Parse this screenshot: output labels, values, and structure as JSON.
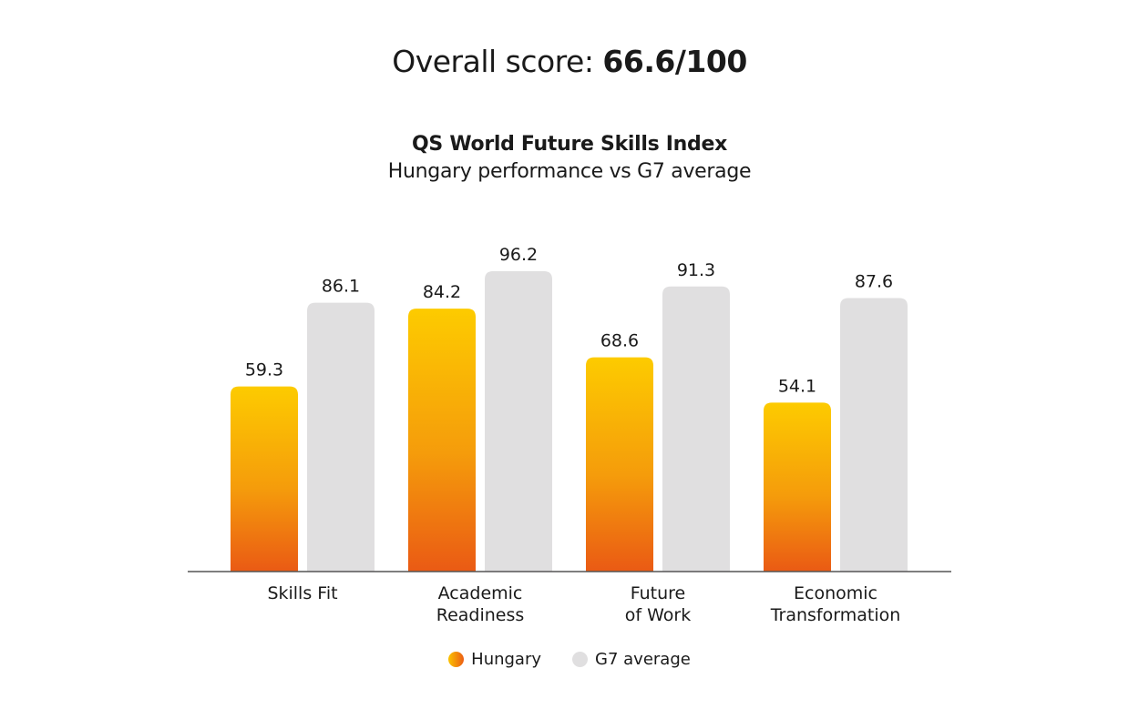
{
  "header": {
    "overall_prefix": "Overall score: ",
    "overall_value": "66.6/100"
  },
  "chart_data": {
    "type": "bar",
    "title": "QS World Future Skills Index",
    "subtitle": "Hungary performance vs G7 average",
    "categories": [
      [
        "Skills Fit"
      ],
      [
        "Academic",
        "Readiness"
      ],
      [
        "Future",
        "of Work"
      ],
      [
        "Economic",
        "Transformation"
      ]
    ],
    "series": [
      {
        "name": "Hungary",
        "values": [
          59.3,
          84.2,
          68.6,
          54.1
        ],
        "color": "#f59c0b"
      },
      {
        "name": "G7 average",
        "values": [
          86.1,
          96.2,
          91.3,
          87.6
        ],
        "color": "#e0dfe0"
      }
    ],
    "ylim": [
      0,
      100
    ],
    "grid": false,
    "legend_position": "bottom-center"
  }
}
